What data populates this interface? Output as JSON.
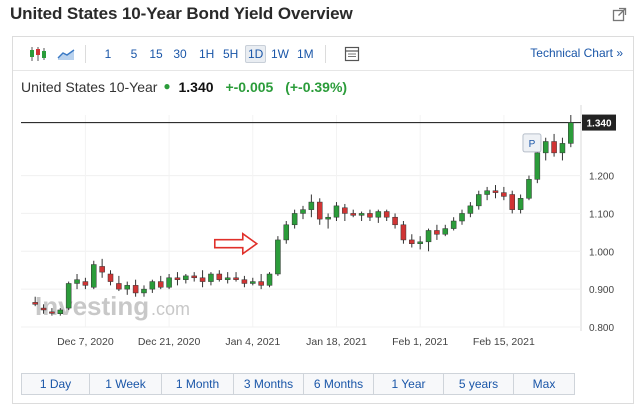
{
  "page": {
    "title": "United States 10-Year Bond Yield Overview"
  },
  "toolbar": {
    "candlestick_icon": "candlestick-chart-icon",
    "area_icon": "area-chart-icon",
    "intervals": [
      "1",
      "5",
      "15",
      "30",
      "1H",
      "5H",
      "1D",
      "1W",
      "1M"
    ],
    "active_interval": "1D",
    "settings_icon": "chart-settings-icon",
    "technical_link": "Technical Chart »"
  },
  "quote": {
    "name": "United States 10-Year",
    "last": "1.340",
    "change": "+-0.005",
    "change_pct": "(+-0.39%)",
    "up_color": "#2b9c3a",
    "down_color": "#d03434"
  },
  "watermark": {
    "brand": "Investing",
    "suffix": ".com"
  },
  "chart_data": {
    "type": "candlestick",
    "title": "",
    "ylim": [
      0.8,
      1.36
    ],
    "yticks": [
      "1.200",
      "1.100",
      "1.000",
      "0.900",
      "0.800"
    ],
    "ytick_values": [
      1.2,
      1.1,
      1.0,
      0.9,
      0.8
    ],
    "xtick_labels": [
      "Dec 7, 2020",
      "Dec 21, 2020",
      "Jan 4, 2021",
      "Jan 18, 2021",
      "Feb 1, 2021",
      "Feb 15, 2021"
    ],
    "current_price_label": "1.340",
    "current_price": 1.34,
    "marker_label": "P",
    "grid": true,
    "candles": [
      {
        "o": 0.865,
        "h": 0.88,
        "l": 0.855,
        "c": 0.86
      },
      {
        "o": 0.85,
        "h": 0.86,
        "l": 0.835,
        "c": 0.845
      },
      {
        "o": 0.84,
        "h": 0.85,
        "l": 0.83,
        "c": 0.838
      },
      {
        "o": 0.835,
        "h": 0.85,
        "l": 0.83,
        "c": 0.845
      },
      {
        "o": 0.85,
        "h": 0.92,
        "l": 0.845,
        "c": 0.915
      },
      {
        "o": 0.915,
        "h": 0.94,
        "l": 0.9,
        "c": 0.925
      },
      {
        "o": 0.92,
        "h": 0.93,
        "l": 0.9,
        "c": 0.91
      },
      {
        "o": 0.905,
        "h": 0.975,
        "l": 0.9,
        "c": 0.965
      },
      {
        "o": 0.96,
        "h": 0.98,
        "l": 0.93,
        "c": 0.945
      },
      {
        "o": 0.94,
        "h": 0.95,
        "l": 0.91,
        "c": 0.92
      },
      {
        "o": 0.915,
        "h": 0.935,
        "l": 0.895,
        "c": 0.9
      },
      {
        "o": 0.9,
        "h": 0.92,
        "l": 0.885,
        "c": 0.91
      },
      {
        "o": 0.91,
        "h": 0.925,
        "l": 0.88,
        "c": 0.89
      },
      {
        "o": 0.89,
        "h": 0.91,
        "l": 0.88,
        "c": 0.9
      },
      {
        "o": 0.9,
        "h": 0.925,
        "l": 0.89,
        "c": 0.92
      },
      {
        "o": 0.92,
        "h": 0.935,
        "l": 0.9,
        "c": 0.905
      },
      {
        "o": 0.905,
        "h": 0.94,
        "l": 0.9,
        "c": 0.93
      },
      {
        "o": 0.93,
        "h": 0.945,
        "l": 0.91,
        "c": 0.925
      },
      {
        "o": 0.925,
        "h": 0.94,
        "l": 0.915,
        "c": 0.935
      },
      {
        "o": 0.935,
        "h": 0.945,
        "l": 0.92,
        "c": 0.93
      },
      {
        "o": 0.93,
        "h": 0.95,
        "l": 0.905,
        "c": 0.92
      },
      {
        "o": 0.92,
        "h": 0.945,
        "l": 0.91,
        "c": 0.94
      },
      {
        "o": 0.94,
        "h": 0.95,
        "l": 0.92,
        "c": 0.925
      },
      {
        "o": 0.925,
        "h": 0.945,
        "l": 0.915,
        "c": 0.93
      },
      {
        "o": 0.93,
        "h": 0.945,
        "l": 0.92,
        "c": 0.925
      },
      {
        "o": 0.925,
        "h": 0.935,
        "l": 0.905,
        "c": 0.915
      },
      {
        "o": 0.915,
        "h": 0.93,
        "l": 0.91,
        "c": 0.92
      },
      {
        "o": 0.92,
        "h": 0.94,
        "l": 0.9,
        "c": 0.91
      },
      {
        "o": 0.91,
        "h": 0.945,
        "l": 0.905,
        "c": 0.94
      },
      {
        "o": 0.94,
        "h": 1.04,
        "l": 0.935,
        "c": 1.03
      },
      {
        "o": 1.03,
        "h": 1.08,
        "l": 1.02,
        "c": 1.07
      },
      {
        "o": 1.07,
        "h": 1.11,
        "l": 1.06,
        "c": 1.1
      },
      {
        "o": 1.1,
        "h": 1.12,
        "l": 1.085,
        "c": 1.11
      },
      {
        "o": 1.11,
        "h": 1.15,
        "l": 1.09,
        "c": 1.13
      },
      {
        "o": 1.13,
        "h": 1.14,
        "l": 1.07,
        "c": 1.085
      },
      {
        "o": 1.085,
        "h": 1.1,
        "l": 1.06,
        "c": 1.09
      },
      {
        "o": 1.09,
        "h": 1.13,
        "l": 1.08,
        "c": 1.12
      },
      {
        "o": 1.115,
        "h": 1.125,
        "l": 1.08,
        "c": 1.1
      },
      {
        "o": 1.1,
        "h": 1.11,
        "l": 1.09,
        "c": 1.095
      },
      {
        "o": 1.095,
        "h": 1.105,
        "l": 1.08,
        "c": 1.1
      },
      {
        "o": 1.1,
        "h": 1.11,
        "l": 1.08,
        "c": 1.09
      },
      {
        "o": 1.09,
        "h": 1.11,
        "l": 1.075,
        "c": 1.105
      },
      {
        "o": 1.105,
        "h": 1.11,
        "l": 1.08,
        "c": 1.09
      },
      {
        "o": 1.09,
        "h": 1.1,
        "l": 1.06,
        "c": 1.07
      },
      {
        "o": 1.07,
        "h": 1.08,
        "l": 1.02,
        "c": 1.03
      },
      {
        "o": 1.03,
        "h": 1.045,
        "l": 1.01,
        "c": 1.02
      },
      {
        "o": 1.02,
        "h": 1.04,
        "l": 1.005,
        "c": 1.025
      },
      {
        "o": 1.025,
        "h": 1.06,
        "l": 1.0,
        "c": 1.055
      },
      {
        "o": 1.055,
        "h": 1.07,
        "l": 1.03,
        "c": 1.045
      },
      {
        "o": 1.045,
        "h": 1.07,
        "l": 1.04,
        "c": 1.06
      },
      {
        "o": 1.06,
        "h": 1.09,
        "l": 1.055,
        "c": 1.08
      },
      {
        "o": 1.08,
        "h": 1.11,
        "l": 1.07,
        "c": 1.1
      },
      {
        "o": 1.1,
        "h": 1.13,
        "l": 1.09,
        "c": 1.12
      },
      {
        "o": 1.12,
        "h": 1.16,
        "l": 1.11,
        "c": 1.15
      },
      {
        "o": 1.15,
        "h": 1.17,
        "l": 1.135,
        "c": 1.16
      },
      {
        "o": 1.16,
        "h": 1.175,
        "l": 1.14,
        "c": 1.155
      },
      {
        "o": 1.155,
        "h": 1.17,
        "l": 1.135,
        "c": 1.145
      },
      {
        "o": 1.15,
        "h": 1.16,
        "l": 1.1,
        "c": 1.11
      },
      {
        "o": 1.11,
        "h": 1.15,
        "l": 1.1,
        "c": 1.14
      },
      {
        "o": 1.14,
        "h": 1.2,
        "l": 1.135,
        "c": 1.19
      },
      {
        "o": 1.19,
        "h": 1.27,
        "l": 1.18,
        "c": 1.26
      },
      {
        "o": 1.26,
        "h": 1.3,
        "l": 1.24,
        "c": 1.29
      },
      {
        "o": 1.29,
        "h": 1.31,
        "l": 1.25,
        "c": 1.26
      },
      {
        "o": 1.26,
        "h": 1.3,
        "l": 1.24,
        "c": 1.285
      },
      {
        "o": 1.285,
        "h": 1.36,
        "l": 1.275,
        "c": 1.34
      }
    ]
  },
  "ranges": [
    "1 Day",
    "1 Week",
    "1 Month",
    "3 Months",
    "6 Months",
    "1 Year",
    "5 years",
    "Max"
  ]
}
